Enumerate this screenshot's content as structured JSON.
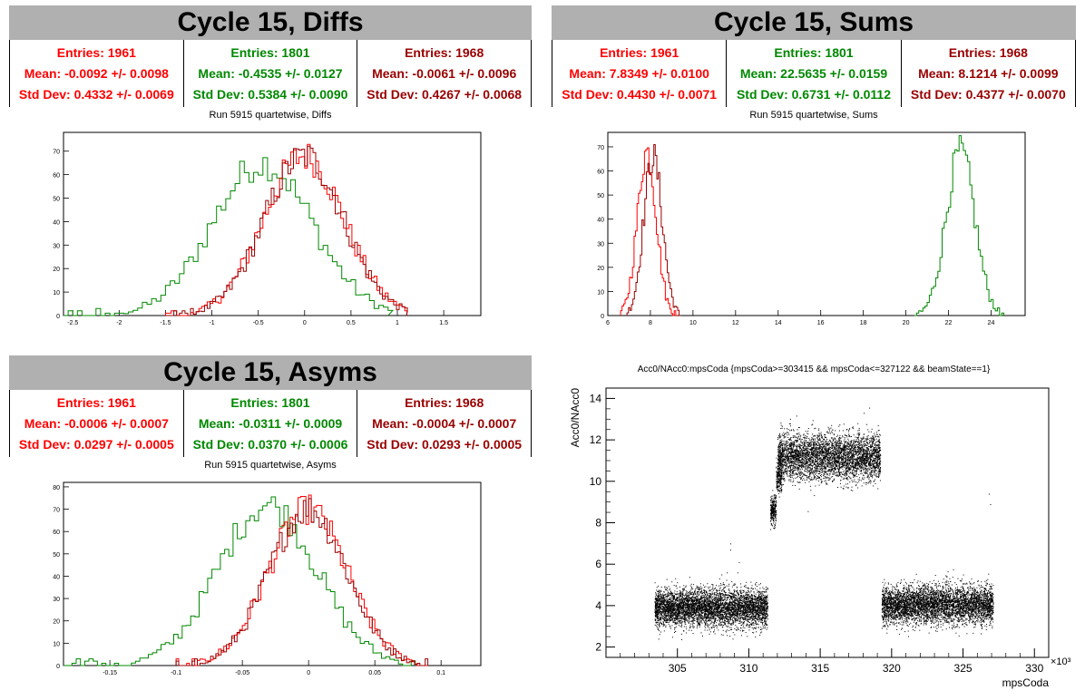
{
  "panels": {
    "diffs": {
      "title": "Cycle 15, Diffs",
      "subtitle": "Run 5915 quartetwise, Diffs",
      "stats": [
        {
          "entries": "Entries: 1961",
          "mean": "Mean: -0.0092 +/- 0.0098",
          "std": "Std Dev: 0.4332 +/- 0.0069",
          "color": "#ff0000"
        },
        {
          "entries": "Entries: 1801",
          "mean": "Mean: -0.4535 +/- 0.0127",
          "std": "Std Dev: 0.5384 +/- 0.0090",
          "color": "#008800"
        },
        {
          "entries": "Entries: 1968",
          "mean": "Mean: -0.0061 +/- 0.0096",
          "std": "Std Dev: 0.4267 +/- 0.0068",
          "color": "#990000"
        }
      ]
    },
    "sums": {
      "title": "Cycle 15, Sums",
      "subtitle": "Run 5915 quartetwise, Sums",
      "stats": [
        {
          "entries": "Entries: 1961",
          "mean": "Mean: 7.8349 +/- 0.0100",
          "std": "Std Dev: 0.4430 +/- 0.0071",
          "color": "#ff0000"
        },
        {
          "entries": "Entries: 1801",
          "mean": "Mean: 22.5635 +/- 0.0159",
          "std": "Std Dev: 0.6731 +/- 0.0112",
          "color": "#008800"
        },
        {
          "entries": "Entries: 1968",
          "mean": "Mean: 8.1214 +/- 0.0099",
          "std": "Std Dev: 0.4377 +/- 0.0070",
          "color": "#990000"
        }
      ]
    },
    "asyms": {
      "title": "Cycle 15, Asyms",
      "subtitle": "Run 5915 quartetwise, Asyms",
      "stats": [
        {
          "entries": "Entries: 1961",
          "mean": "Mean: -0.0006 +/- 0.0007",
          "std": "Std Dev: 0.0297 +/- 0.0005",
          "color": "#ff0000"
        },
        {
          "entries": "Entries: 1801",
          "mean": "Mean: -0.0311 +/- 0.0009",
          "std": "Std Dev: 0.0370 +/- 0.0006",
          "color": "#008800"
        },
        {
          "entries": "Entries: 1968",
          "mean": "Mean: -0.0004 +/- 0.0007",
          "std": "Std Dev: 0.0293 +/- 0.0005",
          "color": "#990000"
        }
      ]
    },
    "scatter": {
      "title": "Acc0/NAcc0:mpsCoda {mpsCoda>=303415 && mpsCoda<=327122 && beamState==1}",
      "xlabel": "mpsCoda",
      "ylabel": "Acc0/NAcc0",
      "xexp": "×10³"
    }
  },
  "chart_data": [
    {
      "type": "histogram",
      "name": "diffs",
      "xlim": [
        -2.6,
        1.9
      ],
      "ylim": [
        0,
        78
      ],
      "xticks": [
        -2.5,
        -2,
        -1.5,
        -1,
        -0.5,
        0,
        0.5,
        1,
        1.5
      ],
      "xtick_labels": [
        "-2.5",
        "-2",
        "-1.5",
        "-1",
        "-0.5",
        "0",
        "0.5",
        "1",
        "1.5"
      ],
      "yticks": [
        0,
        10,
        20,
        30,
        40,
        50,
        60,
        70
      ],
      "series": [
        {
          "color": "#008800",
          "mean": -0.4535,
          "std": 0.5384,
          "peak": 65,
          "lo": -2.6,
          "hi": 0.9,
          "width": 0.05
        },
        {
          "color": "#ff0000",
          "mean": -0.0092,
          "std": 0.4332,
          "peak": 68,
          "lo": -1.5,
          "hi": 1.1,
          "width": 0.03
        },
        {
          "color": "#990000",
          "mean": -0.0061,
          "std": 0.4267,
          "peak": 68,
          "lo": -1.5,
          "hi": 1.1,
          "width": 0.03
        }
      ]
    },
    {
      "type": "histogram",
      "name": "sums",
      "xlim": [
        6,
        25.6
      ],
      "ylim": [
        0,
        76
      ],
      "xticks": [
        6,
        8,
        10,
        12,
        14,
        16,
        18,
        20,
        22,
        24
      ],
      "xtick_labels": [
        "6",
        "8",
        "10",
        "12",
        "14",
        "16",
        "18",
        "20",
        "22",
        "24"
      ],
      "yticks": [
        0,
        10,
        20,
        30,
        40,
        50,
        60,
        70
      ],
      "series": [
        {
          "color": "#008800",
          "mean": 22.5635,
          "std": 0.6731,
          "peak": 68,
          "lo": 20.4,
          "hi": 24.6,
          "width": 0.1
        },
        {
          "color": "#ff0000",
          "mean": 7.8349,
          "std": 0.443,
          "peak": 68,
          "lo": 6.6,
          "hi": 9.2,
          "width": 0.07
        },
        {
          "color": "#990000",
          "mean": 8.1214,
          "std": 0.4377,
          "peak": 66,
          "lo": 6.9,
          "hi": 9.4,
          "width": 0.07
        }
      ]
    },
    {
      "type": "histogram",
      "name": "asyms",
      "xlim": [
        -0.185,
        0.13
      ],
      "ylim": [
        0,
        82
      ],
      "xticks": [
        -0.15,
        -0.1,
        -0.05,
        0,
        0.05,
        0.1
      ],
      "xtick_labels": [
        "-0.15",
        "-0.1",
        "-0.05",
        "0",
        "0.05",
        "0.1"
      ],
      "yticks": [
        0,
        10,
        20,
        30,
        40,
        50,
        60,
        70,
        80
      ],
      "series": [
        {
          "color": "#008800",
          "mean": -0.0311,
          "std": 0.037,
          "peak": 72,
          "lo": -0.185,
          "hi": 0.08,
          "width": 0.0032
        },
        {
          "color": "#ff0000",
          "mean": -0.0006,
          "std": 0.0297,
          "peak": 70,
          "lo": -0.1,
          "hi": 0.09,
          "width": 0.002
        },
        {
          "color": "#990000",
          "mean": -0.0004,
          "std": 0.0293,
          "peak": 70,
          "lo": -0.1,
          "hi": 0.09,
          "width": 0.002
        }
      ]
    },
    {
      "type": "scatter",
      "name": "acc0-vs-mpscoda",
      "xlim": [
        300,
        331
      ],
      "ylim": [
        1.5,
        14.5
      ],
      "xticks": [
        305,
        310,
        315,
        320,
        325,
        330
      ],
      "xtick_labels": [
        "305",
        "310",
        "315",
        "320",
        "325",
        "330"
      ],
      "yticks": [
        2,
        4,
        6,
        8,
        10,
        12,
        14
      ],
      "ytick_labels": [
        "2",
        "4",
        "6",
        "8",
        "10",
        "12",
        "14"
      ],
      "clusters": [
        {
          "x0": 303.4,
          "x1": 311.3,
          "y": 3.9,
          "spread": 0.45,
          "n": 5200
        },
        {
          "x0": 311.5,
          "x1": 311.9,
          "y": 8.6,
          "spread": 0.35,
          "n": 260
        },
        {
          "x0": 311.9,
          "x1": 312.3,
          "y": 10.2,
          "spread": 0.4,
          "n": 200
        },
        {
          "x0": 312.0,
          "x1": 319.2,
          "y": 11.2,
          "spread": 0.55,
          "n": 4200
        },
        {
          "x0": 319.3,
          "x1": 327.1,
          "y": 4.05,
          "spread": 0.45,
          "n": 4800
        }
      ],
      "outliers": [
        [
          308.7,
          7.0
        ],
        [
          308.7,
          6.7
        ],
        [
          309.3,
          6.1
        ],
        [
          309.2,
          5.6
        ],
        [
          326.8,
          9.4
        ],
        [
          326.9,
          8.9
        ],
        [
          324.9,
          5.3
        ],
        [
          325.0,
          5.5
        ]
      ]
    }
  ]
}
